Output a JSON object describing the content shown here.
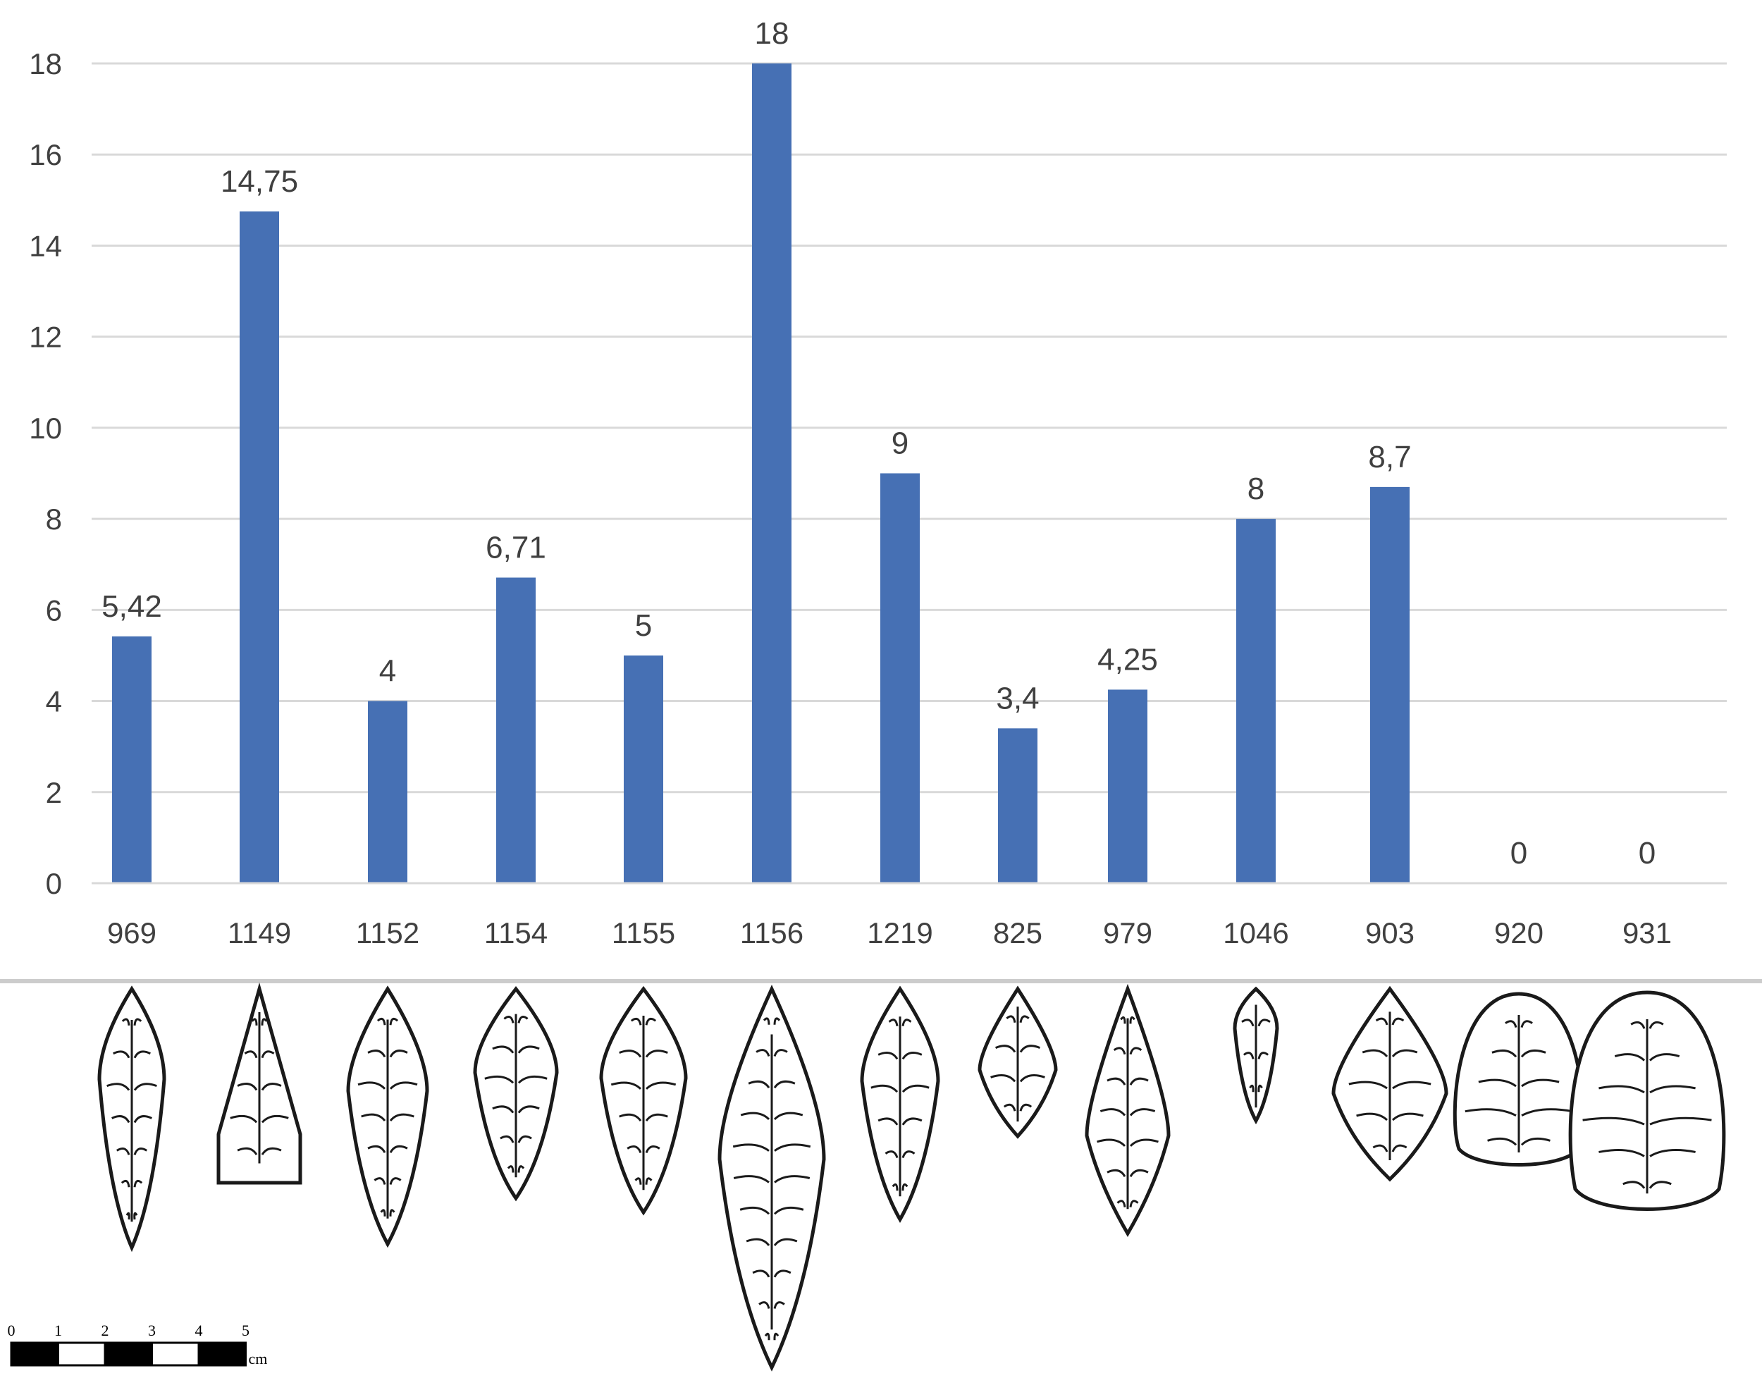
{
  "chart_data": {
    "type": "bar",
    "categories": [
      "969",
      "1149",
      "1152",
      "1154",
      "1155",
      "1156",
      "1219",
      "825",
      "979",
      "1046",
      "903",
      "920",
      "931"
    ],
    "values": [
      5.42,
      14.75,
      4,
      6.71,
      5,
      18,
      9,
      3.4,
      4.25,
      8,
      8.7,
      0,
      0
    ],
    "data_labels": [
      "5,42",
      "14,75",
      "4",
      "6,71",
      "5",
      "18",
      "9",
      "3,4",
      "4,25",
      "8",
      "8,7",
      "0",
      "0"
    ],
    "ylim": [
      0,
      18
    ],
    "yticks": [
      "0",
      "2",
      "4",
      "6",
      "8",
      "10",
      "12",
      "14",
      "16",
      "18"
    ],
    "grid": true,
    "bar_color": "#4670b4",
    "title": "",
    "xlabel": "",
    "ylabel": ""
  },
  "scale_bar": {
    "ticks": [
      "0",
      "1",
      "2",
      "3",
      "4",
      "5"
    ],
    "unit": "cm"
  },
  "drawings": {
    "icon": "lithic-point-drawing-icon"
  }
}
